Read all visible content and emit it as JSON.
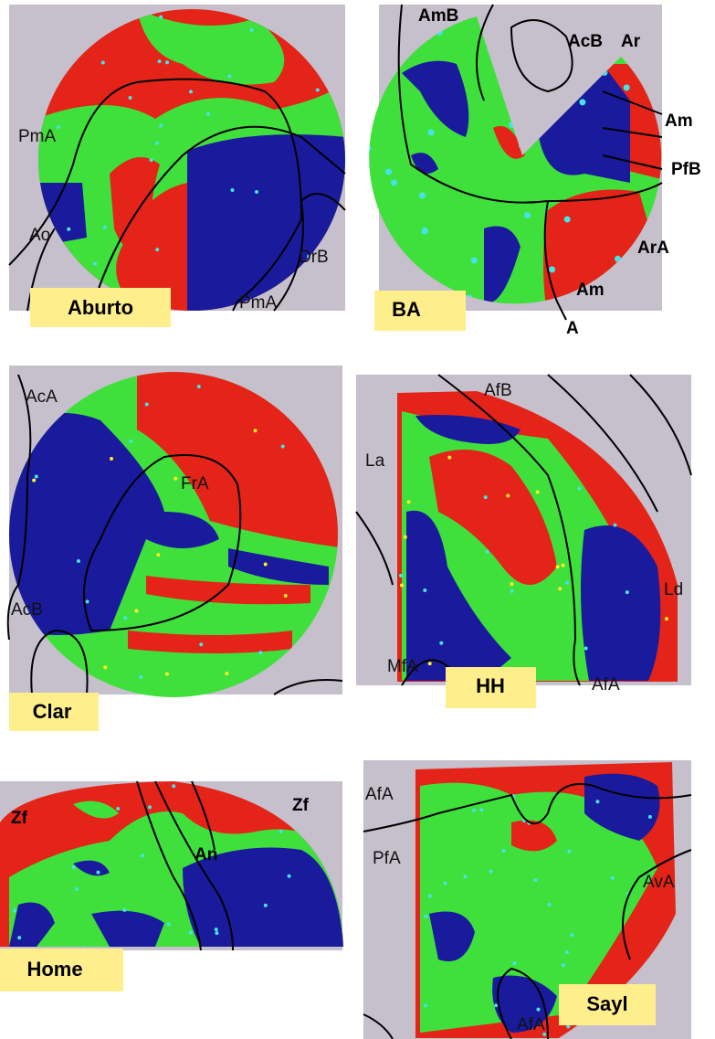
{
  "panels": [
    {
      "label": "Aburto",
      "regions": [
        "PmA",
        "Ao",
        "DrB",
        "PmA"
      ]
    },
    {
      "label": "BA",
      "regions": [
        "AmB",
        "AcB",
        "Ar",
        "Am",
        "PfB",
        "ArA",
        "Am",
        "A"
      ]
    },
    {
      "label": "Clar",
      "regions": [
        "AcA",
        "FrA",
        "AcB"
      ]
    },
    {
      "label": "HH",
      "regions": [
        "AfB",
        "La",
        "Ld",
        "MfA",
        "AfA"
      ]
    },
    {
      "label": "Home",
      "regions": [
        "Zf",
        "Zf",
        "An"
      ]
    },
    {
      "label": "Sayl",
      "regions": [
        "AfA",
        "PfA",
        "AvA",
        "AfA"
      ]
    }
  ]
}
